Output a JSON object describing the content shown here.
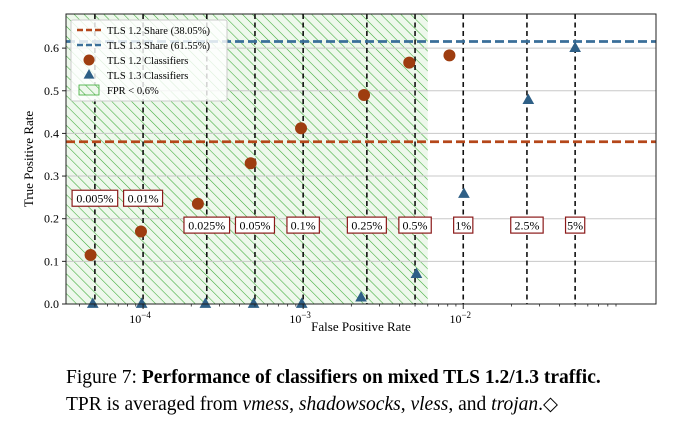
{
  "chart_data": {
    "type": "scatter",
    "xscale": "log",
    "xlim": [
      3.3e-05,
      0.16
    ],
    "ylim": [
      0,
      0.68
    ],
    "xlabel": "False Positive Rate",
    "ylabel": "True Positive Rate",
    "yticks": [
      "0.0",
      "0.1",
      "0.2",
      "0.3",
      "0.4",
      "0.5",
      "0.6"
    ],
    "ytick_values": [
      0,
      0.1,
      0.2,
      0.3,
      0.4,
      0.5,
      0.6
    ],
    "xticks": [
      {
        "value": 0.0001,
        "base": "10",
        "exp": "−4"
      },
      {
        "value": 0.001,
        "base": "10",
        "exp": "−3"
      },
      {
        "value": 0.01,
        "base": "10",
        "exp": "−2"
      }
    ],
    "grid": "horizontal",
    "legend_position": "top-left",
    "legend": [
      {
        "label": "TLS 1.2 Share (38.05%)",
        "kind": "dashed-line",
        "color": "#b5471a"
      },
      {
        "label": "TLS 1.3 Share (61.55%)",
        "kind": "dashed-line",
        "color": "#3a6f99"
      },
      {
        "label": "TLS 1.2 Classifiers",
        "kind": "circle",
        "color": "#9e3d10"
      },
      {
        "label": "TLS 1.3 Classifiers",
        "kind": "triangle",
        "color": "#2e5f86"
      },
      {
        "label": "FPR < 0.6%",
        "kind": "hatch",
        "color": "#3aaa35"
      }
    ],
    "shaded_region": {
      "label": "FPR < 0.6%",
      "x_max": 0.006
    },
    "horizontal_lines": [
      {
        "name": "TLS 1.2 Share (38.05%)",
        "y": 0.3805,
        "color": "#b5471a"
      },
      {
        "name": "TLS 1.3 Share (61.55%)",
        "y": 0.6155,
        "color": "#3a6f99"
      }
    ],
    "fpr_thresholds": [
      {
        "x": 5e-05,
        "label": "0.005%",
        "label_y": 0.248
      },
      {
        "x": 0.0001,
        "label": "0.01%",
        "label_y": 0.248
      },
      {
        "x": 0.00025,
        "label": "0.025%",
        "label_y": 0.185
      },
      {
        "x": 0.0005,
        "label": "0.05%",
        "label_y": 0.185
      },
      {
        "x": 0.001,
        "label": "0.1%",
        "label_y": 0.185
      },
      {
        "x": 0.0025,
        "label": "0.25%",
        "label_y": 0.185
      },
      {
        "x": 0.005,
        "label": "0.5%",
        "label_y": 0.185
      },
      {
        "x": 0.01,
        "label": "1%",
        "label_y": 0.185
      },
      {
        "x": 0.025,
        "label": "2.5%",
        "label_y": 0.185
      },
      {
        "x": 0.05,
        "label": "5%",
        "label_y": 0.185
      }
    ],
    "series": [
      {
        "name": "TLS 1.2 Classifiers",
        "marker": "circle",
        "color": "#9e3d10",
        "points": [
          {
            "x": 4.7e-05,
            "y": 0.115
          },
          {
            "x": 9.7e-05,
            "y": 0.17
          },
          {
            "x": 0.00022,
            "y": 0.235
          },
          {
            "x": 0.00047,
            "y": 0.33
          },
          {
            "x": 0.00097,
            "y": 0.412
          },
          {
            "x": 0.0024,
            "y": 0.49
          },
          {
            "x": 0.0046,
            "y": 0.566
          },
          {
            "x": 0.0082,
            "y": 0.583
          }
        ]
      },
      {
        "name": "TLS 1.3 Classifiers",
        "marker": "triangle",
        "color": "#2e5f86",
        "points": [
          {
            "x": 4.85e-05,
            "y": 0.0
          },
          {
            "x": 9.8e-05,
            "y": 0.0
          },
          {
            "x": 0.000245,
            "y": 0.0
          },
          {
            "x": 0.00049,
            "y": 0.0
          },
          {
            "x": 0.00098,
            "y": 0.0
          },
          {
            "x": 0.0023,
            "y": 0.015
          },
          {
            "x": 0.0051,
            "y": 0.07
          },
          {
            "x": 0.0101,
            "y": 0.258
          },
          {
            "x": 0.0255,
            "y": 0.478
          },
          {
            "x": 0.05,
            "y": 0.6
          }
        ]
      }
    ]
  },
  "caption": {
    "figure_label": "Figure 7:",
    "title": "Performance of classifiers on mixed TLS 1.2/1.3 traffic.",
    "line2_prefix": "TPR is averaged from ",
    "item1": "vmess",
    "sep1": ", ",
    "item2": "shadowsocks",
    "sep2": ", ",
    "item3": "vless",
    "sep3": ", and ",
    "item4": "trojan",
    "suffix": ".◇"
  }
}
